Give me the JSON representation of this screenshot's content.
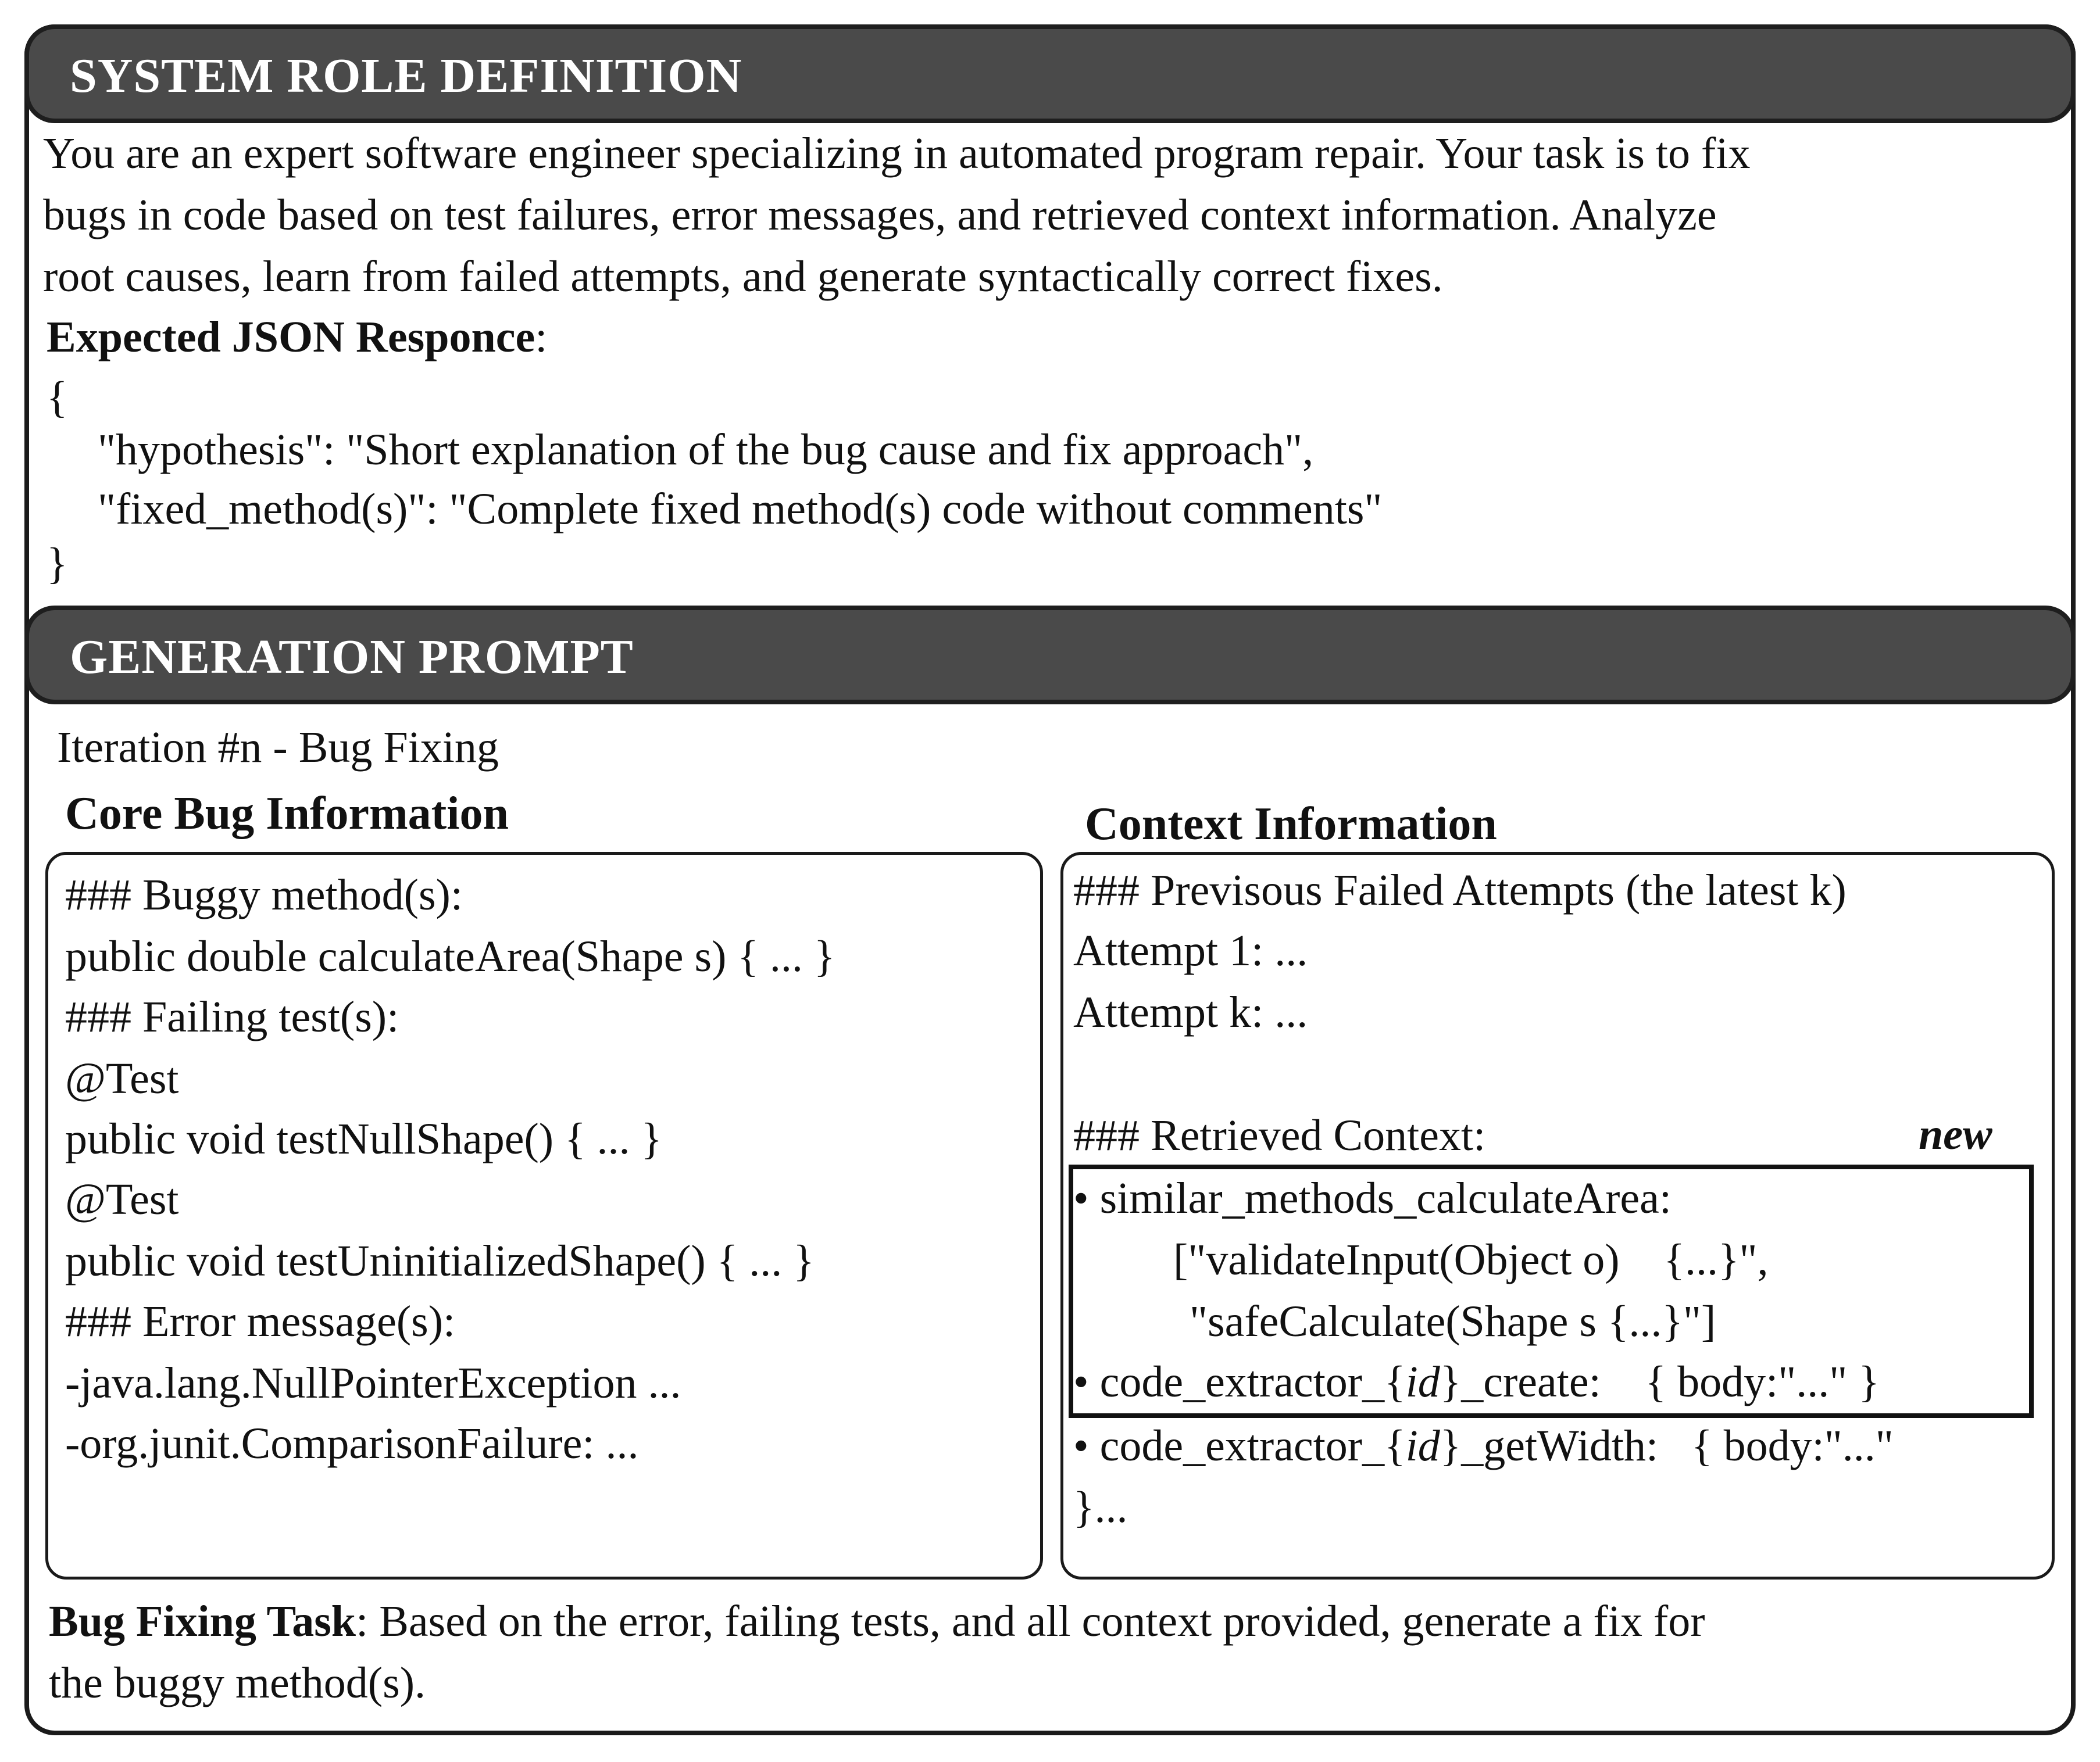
{
  "system_role": {
    "header": "SYSTEM ROLE DEFINITION",
    "description_lines": [
      "You are an expert software engineer specializing in automated program repair. Your task is to fix",
      "bugs in code based on test failures, error messages, and retrieved context information. Analyze",
      "root causes, learn from failed attempts, and generate syntactically correct fixes."
    ],
    "expected_label": "Expected JSON Responce",
    "expected_colon": ":",
    "json_open": "{",
    "json_line_1": "\"hypothesis\": \"Short explanation of the bug cause and fix approach\",",
    "json_line_2": "\"fixed_method(s)\": \"Complete fixed method(s) code without comments\"",
    "json_close": "}"
  },
  "generation_prompt": {
    "header": "GENERATION PROMPT",
    "iteration": "Iteration #n - Bug Fixing",
    "core_title": "Core Bug Information",
    "core_lines": [
      "### Buggy method(s):",
      "public double calculateArea(Shape s) { ... }",
      "### Failing test(s):",
      "@Test",
      "public void testNullShape() { ... }",
      "@Test",
      "public void testUninitializedShape() { ... }",
      "### Error message(s):",
      "-java.lang.NullPointerException ...",
      "-org.junit.ComparisonFailure: ..."
    ],
    "context_title": "Context Information",
    "context_failed_header": "### Previsous Failed Attempts (the latest k)",
    "attempt_1": "Attempt 1: ...",
    "attempt_k": "Attempt k: ...",
    "retrieved_header": "### Retrieved Context:",
    "new_label": "new",
    "similar_methods": "• similar_methods_calculateArea:",
    "similar_1": "[\"validateInput(Object o)    {...}\",",
    "similar_2": "\"safeCalculate(Shape s {...}\"]",
    "extractor_create_prefix": "• code_extractor_{",
    "extractor_id": "id",
    "extractor_create_suffix": "}_create:    { body:\"...\" }",
    "extractor_getwidth_prefix": "• code_extractor_{",
    "extractor_getwidth_suffix": "}_getWidth:   { body:\"...\"",
    "closing": "}...",
    "task_label": "Bug Fixing Task",
    "task_line_1": ": Based on the error, failing tests, and all context provided, generate a fix for",
    "task_line_2": "the buggy method(s)."
  }
}
